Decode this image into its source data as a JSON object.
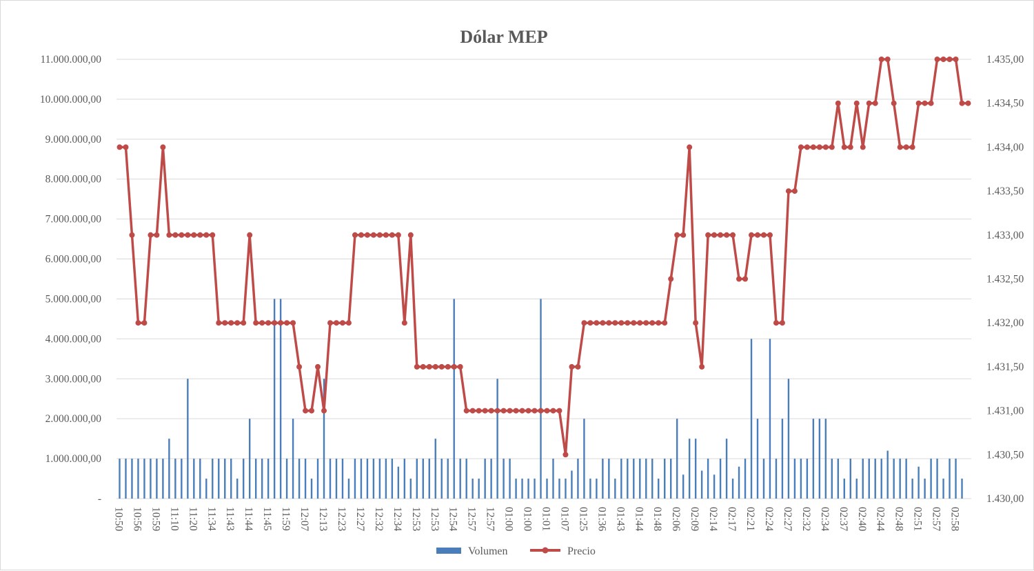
{
  "chart_data": {
    "type": "bar+line",
    "title": "Dólar MEP",
    "legend": {
      "position": "bottom",
      "entries": [
        "Volumen",
        "Precio"
      ]
    },
    "colors": {
      "volume": "#4a7ebb",
      "price": "#be4b48",
      "grid": "#d9d9d9",
      "text": "#595959"
    },
    "left_axis": {
      "min": 0,
      "max": 11000000,
      "ticks": [
        {
          "value": 0,
          "label": "-"
        },
        {
          "value": 1000000,
          "label": "1.000.000,00"
        },
        {
          "value": 2000000,
          "label": "2.000.000,00"
        },
        {
          "value": 3000000,
          "label": "3.000.000,00"
        },
        {
          "value": 4000000,
          "label": "4.000.000,00"
        },
        {
          "value": 5000000,
          "label": "5.000.000,00"
        },
        {
          "value": 6000000,
          "label": "6.000.000,00"
        },
        {
          "value": 7000000,
          "label": "7.000.000,00"
        },
        {
          "value": 8000000,
          "label": "8.000.000,00"
        },
        {
          "value": 9000000,
          "label": "9.000.000,00"
        },
        {
          "value": 10000000,
          "label": "10.000.000,00"
        },
        {
          "value": 11000000,
          "label": "11.000.000,00"
        }
      ]
    },
    "right_axis": {
      "min": 1430,
      "max": 1435,
      "ticks": [
        {
          "value": 1430,
          "label": "1.430,00"
        },
        {
          "value": 1430.5,
          "label": "1.430,50"
        },
        {
          "value": 1431,
          "label": "1.431,00"
        },
        {
          "value": 1431.5,
          "label": "1.431,50"
        },
        {
          "value": 1432,
          "label": "1.432,00"
        },
        {
          "value": 1432.5,
          "label": "1.432,50"
        },
        {
          "value": 1433,
          "label": "1.433,00"
        },
        {
          "value": 1433.5,
          "label": "1.433,50"
        },
        {
          "value": 1434,
          "label": "1.434,00"
        },
        {
          "value": 1434.5,
          "label": "1.434,50"
        },
        {
          "value": 1435,
          "label": "1.435,00"
        }
      ]
    },
    "x_tick_labels": [
      "10:50",
      "10:56",
      "10:59",
      "11:10",
      "11:20",
      "11:34",
      "11:43",
      "11:44",
      "11:45",
      "11:59",
      "12:07",
      "12:13",
      "12:23",
      "12:27",
      "12:32",
      "12:34",
      "12:53",
      "12:53",
      "12:54",
      "12:57",
      "12:57",
      "01:00",
      "01:00",
      "01:01",
      "01:07",
      "01:25",
      "01:36",
      "01:43",
      "01:44",
      "01:48",
      "02:06",
      "02:09",
      "02:14",
      "02:17",
      "02:21",
      "02:24",
      "02:27",
      "02:32",
      "02:34",
      "02:37",
      "02:40",
      "02:44",
      "02:48",
      "02:51",
      "02:57",
      "02:58"
    ],
    "x_tick_every": 3,
    "volume": [
      1000000,
      1000000,
      1000000,
      1000000,
      1000000,
      1000000,
      1000000,
      1000000,
      1500000,
      1000000,
      1000000,
      3000000,
      1000000,
      1000000,
      500000,
      1000000,
      1000000,
      1000000,
      1000000,
      500000,
      1000000,
      2000000,
      1000000,
      1000000,
      1000000,
      5000000,
      5000000,
      1000000,
      2000000,
      1000000,
      1000000,
      500000,
      1000000,
      3000000,
      1000000,
      1000000,
      1000000,
      500000,
      1000000,
      1000000,
      1000000,
      1000000,
      1000000,
      1000000,
      1000000,
      800000,
      1000000,
      500000,
      1000000,
      1000000,
      1000000,
      1500000,
      1000000,
      1000000,
      5000000,
      1000000,
      1000000,
      500000,
      500000,
      1000000,
      1000000,
      3000000,
      1000000,
      1000000,
      500000,
      500000,
      500000,
      500000,
      5000000,
      500000,
      1000000,
      500000,
      500000,
      700000,
      1000000,
      2000000,
      500000,
      500000,
      1000000,
      1000000,
      500000,
      1000000,
      1000000,
      1000000,
      1000000,
      1000000,
      1000000,
      500000,
      1000000,
      1000000,
      2000000,
      600000,
      1500000,
      1500000,
      700000,
      1000000,
      600000,
      1000000,
      1500000,
      500000,
      800000,
      1000000,
      4000000,
      2000000,
      1000000,
      4000000,
      1000000,
      2000000,
      3000000,
      1000000,
      1000000,
      1000000,
      2000000,
      2000000,
      2000000,
      1000000,
      1000000,
      500000,
      1000000,
      500000,
      1000000,
      1000000,
      1000000,
      1000000,
      1200000,
      1000000,
      1000000,
      1000000,
      500000,
      800000,
      500000,
      1000000,
      1000000,
      500000,
      1000000,
      1000000,
      500000
    ],
    "price": [
      1434,
      1434,
      1433,
      1432,
      1432,
      1433,
      1433,
      1434,
      1433,
      1433,
      1433,
      1433,
      1433,
      1433,
      1433,
      1433,
      1432,
      1432,
      1432,
      1432,
      1432,
      1433,
      1432,
      1432,
      1432,
      1432,
      1432,
      1432,
      1432,
      1431.5,
      1431,
      1431,
      1431.5,
      1431,
      1432,
      1432,
      1432,
      1432,
      1433,
      1433,
      1433,
      1433,
      1433,
      1433,
      1433,
      1433,
      1432,
      1433,
      1431.5,
      1431.5,
      1431.5,
      1431.5,
      1431.5,
      1431.5,
      1431.5,
      1431.5,
      1431,
      1431,
      1431,
      1431,
      1431,
      1431,
      1431,
      1431,
      1431,
      1431,
      1431,
      1431,
      1431,
      1431,
      1431,
      1431,
      1430.5,
      1431.5,
      1431.5,
      1432,
      1432,
      1432,
      1432,
      1432,
      1432,
      1432,
      1432,
      1432,
      1432,
      1432,
      1432,
      1432,
      1432,
      1432.5,
      1433,
      1433,
      1434,
      1432,
      1431.5,
      1433,
      1433,
      1433,
      1433,
      1433,
      1432.5,
      1432.5,
      1433,
      1433,
      1433,
      1433,
      1432,
      1432,
      1433.5,
      1433.5,
      1434,
      1434,
      1434,
      1434,
      1434,
      1434,
      1434.5,
      1434,
      1434,
      1434.5,
      1434,
      1434.5,
      1434.5,
      1435,
      1435,
      1434.5,
      1434,
      1434,
      1434,
      1434.5,
      1434.5,
      1434.5,
      1435,
      1435,
      1435,
      1435,
      1434.5,
      1434.5
    ]
  }
}
